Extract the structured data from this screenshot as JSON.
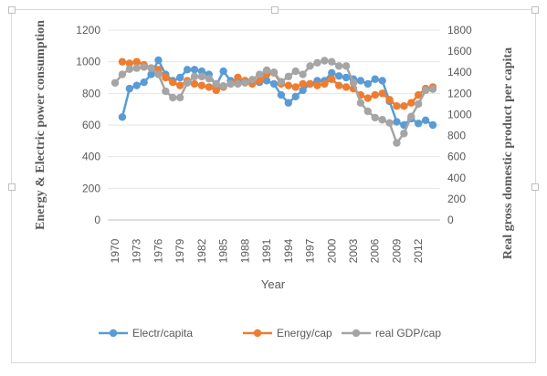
{
  "chart_data": {
    "type": "line",
    "xlabel": "Year",
    "ylabel_left": "Energy & Electric power consumption",
    "ylabel_right": "Real gross domestic product per capita",
    "y_left_lim": [
      0,
      1200
    ],
    "y_left_ticks": [
      "0",
      "200",
      "400",
      "600",
      "800",
      "1000",
      "1200"
    ],
    "y_right_lim": [
      0,
      1800
    ],
    "y_right_ticks": [
      "0",
      "200",
      "400",
      "600",
      "800",
      "1000",
      "1200",
      "1400",
      "1600",
      "1800"
    ],
    "x_tick_labels": [
      "1970",
      "1973",
      "1976",
      "1979",
      "1982",
      "1985",
      "1988",
      "1991",
      "1994",
      "1997",
      "2000",
      "2003",
      "2006",
      "2009",
      "2012"
    ],
    "grid": "horizontal",
    "legend_position": "bottom",
    "x": [
      1970,
      1971,
      1972,
      1973,
      1974,
      1975,
      1976,
      1977,
      1978,
      1979,
      1980,
      1981,
      1982,
      1983,
      1984,
      1985,
      1986,
      1987,
      1988,
      1989,
      1990,
      1991,
      1992,
      1993,
      1994,
      1995,
      1996,
      1997,
      1998,
      1999,
      2000,
      2001,
      2002,
      2003,
      2004,
      2005,
      2006,
      2007,
      2008,
      2009,
      2010,
      2011,
      2012,
      2013,
      2014
    ],
    "series": [
      {
        "name": "Electr/capita",
        "axis": "left",
        "color": "#5b9bd5",
        "values": [
          null,
          650,
          830,
          850,
          870,
          920,
          1010,
          920,
          880,
          900,
          950,
          950,
          940,
          920,
          850,
          940,
          880,
          870,
          880,
          880,
          870,
          880,
          860,
          790,
          740,
          780,
          820,
          860,
          880,
          880,
          930,
          910,
          900,
          890,
          880,
          860,
          890,
          880,
          750,
          620,
          600,
          640,
          610,
          630,
          600
        ]
      },
      {
        "name": "Energy/cap",
        "axis": "left",
        "color": "#ed7d31",
        "values": [
          null,
          1000,
          990,
          1000,
          980,
          960,
          950,
          900,
          870,
          850,
          880,
          860,
          850,
          840,
          820,
          840,
          860,
          900,
          880,
          860,
          880,
          920,
          930,
          860,
          850,
          840,
          860,
          860,
          850,
          860,
          890,
          850,
          840,
          830,
          790,
          770,
          790,
          800,
          760,
          720,
          720,
          740,
          790,
          830,
          840
        ]
      },
      {
        "name": "real GDP/cap",
        "axis": "right",
        "color": "#a5a5a5",
        "values": [
          1300,
          1380,
          1430,
          1440,
          1450,
          1440,
          1380,
          1220,
          1160,
          1160,
          1300,
          1360,
          1360,
          1340,
          1290,
          1270,
          1290,
          1290,
          1300,
          1330,
          1380,
          1420,
          1400,
          1310,
          1360,
          1410,
          1380,
          1460,
          1490,
          1510,
          1500,
          1460,
          1460,
          1300,
          1110,
          1030,
          970,
          950,
          920,
          730,
          820,
          980,
          1100,
          1230,
          1240
        ]
      }
    ]
  }
}
